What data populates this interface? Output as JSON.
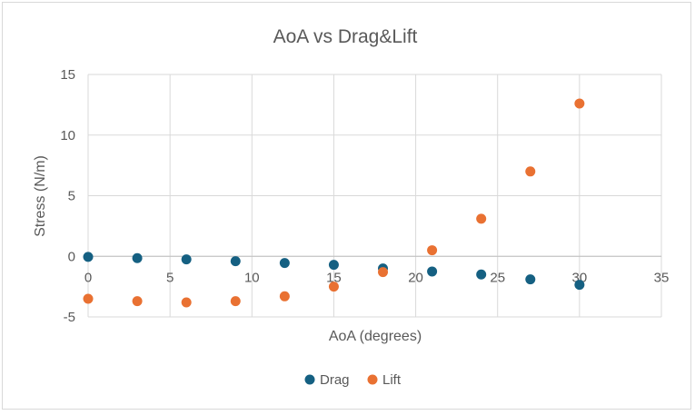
{
  "chart_data": {
    "type": "scatter",
    "title": "AoA vs Drag&Lift",
    "xlabel": "AoA (degrees)",
    "ylabel": "Stress (N/m)",
    "xlim": [
      0,
      35
    ],
    "ylim": [
      -5,
      15
    ],
    "x_ticks": [
      "0",
      "5",
      "10",
      "15",
      "20",
      "25",
      "30",
      "35"
    ],
    "y_ticks": [
      "15",
      "10",
      "5",
      "0",
      "-5"
    ],
    "grid": true,
    "legend_position": "bottom",
    "series": [
      {
        "name": "Drag",
        "color": "#156082",
        "points": [
          {
            "x": 0,
            "y": -0.05
          },
          {
            "x": 3,
            "y": -0.15
          },
          {
            "x": 6,
            "y": -0.25
          },
          {
            "x": 9,
            "y": -0.4
          },
          {
            "x": 12,
            "y": -0.55
          },
          {
            "x": 15,
            "y": -0.7
          },
          {
            "x": 18,
            "y": -1.0
          },
          {
            "x": 21,
            "y": -1.25
          },
          {
            "x": 24,
            "y": -1.5
          },
          {
            "x": 27,
            "y": -1.9
          },
          {
            "x": 30,
            "y": -2.35
          }
        ]
      },
      {
        "name": "Lift",
        "color": "#E97132",
        "points": [
          {
            "x": 0,
            "y": -3.5
          },
          {
            "x": 3,
            "y": -3.7
          },
          {
            "x": 6,
            "y": -3.8
          },
          {
            "x": 9,
            "y": -3.7
          },
          {
            "x": 12,
            "y": -3.3
          },
          {
            "x": 15,
            "y": -2.5
          },
          {
            "x": 18,
            "y": -1.3
          },
          {
            "x": 21,
            "y": 0.5
          },
          {
            "x": 24,
            "y": 3.1
          },
          {
            "x": 27,
            "y": 7.0
          },
          {
            "x": 30,
            "y": 12.6
          }
        ]
      }
    ]
  }
}
